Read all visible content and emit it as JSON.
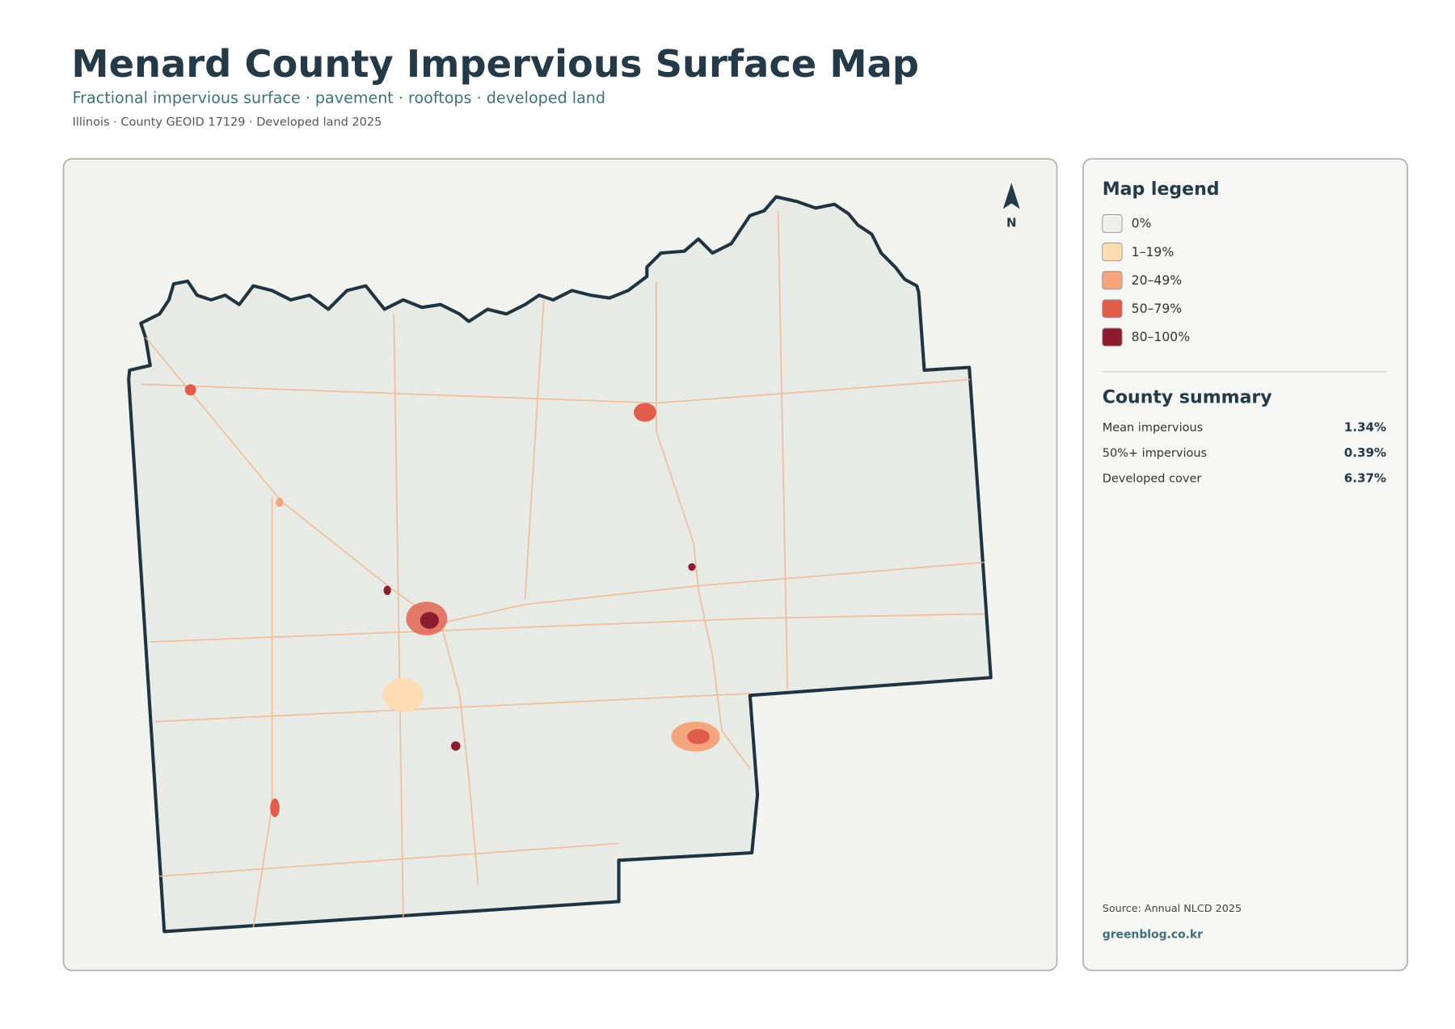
{
  "header": {
    "title": "Menard County Impervious Surface Map",
    "subtitle": "Fractional impervious surface · pavement · rooftops · developed land",
    "meta": "Illinois · County GEOID 17129 · Developed land 2025"
  },
  "map": {
    "north": "N"
  },
  "legend": {
    "title": "Map legend",
    "items": [
      {
        "label": "0%",
        "color": "#eeeeea"
      },
      {
        "label": "1–19%",
        "color": "#fddcb4"
      },
      {
        "label": "20–49%",
        "color": "#f4a57c"
      },
      {
        "label": "50–79%",
        "color": "#e05d4b"
      },
      {
        "label": "80–100%",
        "color": "#8c1c2e"
      }
    ]
  },
  "summary": {
    "title": "County summary",
    "rows": [
      {
        "label": "Mean impervious",
        "value": "1.34%"
      },
      {
        "label": "50%+ impervious",
        "value": "0.39%"
      },
      {
        "label": "Developed cover",
        "value": "6.37%"
      }
    ]
  },
  "footer": {
    "source": "Source: Annual NLCD 2025",
    "site": "greenblog.co.kr"
  }
}
